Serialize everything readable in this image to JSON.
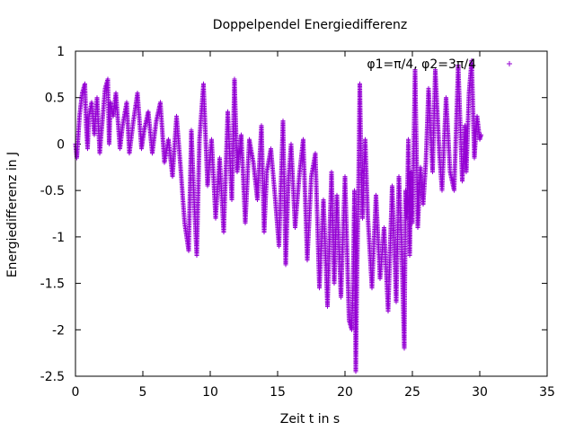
{
  "chart_data": {
    "type": "scatter",
    "title": "Doppelpendel Energiedifferenz",
    "xlabel": "Zeit t in s",
    "ylabel": "Energiedifferenz in J",
    "xlim": [
      0,
      35
    ],
    "ylim": [
      -2.5,
      1
    ],
    "xticks": [
      "0",
      "5",
      "10",
      "15",
      "20",
      "25",
      "30",
      "35"
    ],
    "yticks": [
      "1",
      "0.5",
      "0",
      "-0.5",
      "-1",
      "-1.5",
      "-2",
      "-2.5"
    ],
    "grid": false,
    "legend_position": "top-right",
    "marker": "+",
    "color": "#9400d3",
    "series": [
      {
        "name": "φ1=π/4, φ2=3π/4",
        "x": [
          0.0,
          0.1,
          0.3,
          0.5,
          0.7,
          0.8,
          0.9,
          1.0,
          1.2,
          1.4,
          1.6,
          1.8,
          2.0,
          2.2,
          2.4,
          2.5,
          2.6,
          2.8,
          3.0,
          3.3,
          3.5,
          3.8,
          4.0,
          4.3,
          4.6,
          4.9,
          5.1,
          5.4,
          5.7,
          6.0,
          6.3,
          6.6,
          6.9,
          7.2,
          7.5,
          7.8,
          8.1,
          8.4,
          8.6,
          8.8,
          9.0,
          9.2,
          9.5,
          9.8,
          10.1,
          10.4,
          10.7,
          11.0,
          11.3,
          11.6,
          11.8,
          12.0,
          12.3,
          12.6,
          12.9,
          13.2,
          13.5,
          13.8,
          14.0,
          14.2,
          14.5,
          14.8,
          15.1,
          15.4,
          15.6,
          15.8,
          16.0,
          16.3,
          16.6,
          16.9,
          17.2,
          17.5,
          17.8,
          18.1,
          18.4,
          18.7,
          19.0,
          19.2,
          19.4,
          19.7,
          20.0,
          20.3,
          20.5,
          20.6,
          20.7,
          20.8,
          20.9,
          21.0,
          21.1,
          21.2,
          21.3,
          21.5,
          21.7,
          22.0,
          22.3,
          22.6,
          22.9,
          23.2,
          23.5,
          23.8,
          24.0,
          24.2,
          24.4,
          24.5,
          24.6,
          24.7,
          24.8,
          24.9,
          25.0,
          25.2,
          25.4,
          25.6,
          25.8,
          26.0,
          26.2,
          26.5,
          26.7,
          27.0,
          27.2,
          27.5,
          27.8,
          28.1,
          28.4,
          28.7,
          28.9,
          29.0,
          29.2,
          29.4,
          29.6,
          29.8,
          30.0,
          30.1
        ],
        "y": [
          0.0,
          -0.15,
          0.3,
          0.55,
          0.65,
          0.2,
          -0.05,
          0.3,
          0.45,
          0.1,
          0.5,
          -0.1,
          0.25,
          0.6,
          0.7,
          0.0,
          0.45,
          0.3,
          0.55,
          -0.05,
          0.2,
          0.45,
          -0.1,
          0.25,
          0.55,
          -0.05,
          0.15,
          0.35,
          -0.1,
          0.25,
          0.45,
          -0.2,
          0.05,
          -0.35,
          0.3,
          -0.25,
          -0.85,
          -1.15,
          0.15,
          -0.6,
          -1.2,
          0.05,
          0.65,
          -0.45,
          0.05,
          -0.8,
          -0.15,
          -0.95,
          0.35,
          -0.6,
          0.7,
          -0.3,
          0.1,
          -0.85,
          0.05,
          -0.2,
          -0.6,
          0.2,
          -0.95,
          -0.3,
          -0.05,
          -0.55,
          -1.1,
          0.25,
          -1.3,
          -0.4,
          0.0,
          -0.9,
          -0.35,
          0.05,
          -1.25,
          -0.35,
          -0.1,
          -1.55,
          -0.6,
          -1.75,
          -0.3,
          -1.5,
          -0.55,
          -1.65,
          -0.35,
          -1.9,
          -2.0,
          -1.5,
          -0.5,
          -2.45,
          -1.35,
          -0.45,
          0.65,
          -0.25,
          -0.8,
          0.05,
          -0.8,
          -1.55,
          -0.55,
          -1.45,
          -0.9,
          -1.8,
          -0.45,
          -1.7,
          -0.35,
          -1.1,
          -2.2,
          -0.5,
          -0.8,
          0.05,
          -1.2,
          -0.3,
          -0.85,
          0.8,
          -0.9,
          -0.25,
          -0.65,
          -0.2,
          0.6,
          -0.3,
          0.8,
          -0.1,
          -0.5,
          0.5,
          -0.3,
          -0.5,
          0.85,
          -0.4,
          0.2,
          -0.3,
          0.55,
          0.9,
          -0.15,
          0.3,
          0.05,
          0.1
        ]
      }
    ]
  }
}
